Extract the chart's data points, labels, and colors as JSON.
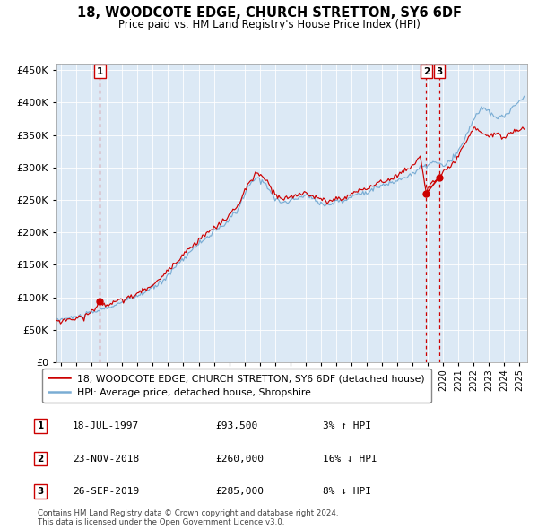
{
  "title": "18, WOODCOTE EDGE, CHURCH STRETTON, SY6 6DF",
  "subtitle": "Price paid vs. HM Land Registry's House Price Index (HPI)",
  "legend_red": "18, WOODCOTE EDGE, CHURCH STRETTON, SY6 6DF (detached house)",
  "legend_blue": "HPI: Average price, detached house, Shropshire",
  "table_entries": [
    {
      "num": 1,
      "date": "18-JUL-1997",
      "price": 93500,
      "pct": "3%",
      "dir": "↑"
    },
    {
      "num": 2,
      "date": "23-NOV-2018",
      "price": 260000,
      "pct": "16%",
      "dir": "↓"
    },
    {
      "num": 3,
      "date": "26-SEP-2019",
      "price": 285000,
      "pct": "8%",
      "dir": "↓"
    }
  ],
  "copyright_text": "Contains HM Land Registry data © Crown copyright and database right 2024.\nThis data is licensed under the Open Government Licence v3.0.",
  "sale_dates_decimal": [
    1997.54,
    2018.9,
    2019.74
  ],
  "sale_prices": [
    93500,
    260000,
    285000
  ],
  "background_color": "#dce9f5",
  "plot_bg_color": "#dce9f5",
  "red_color": "#cc0000",
  "blue_color": "#7aadd4",
  "ylim": [
    0,
    460000
  ],
  "xlim_start": 1994.7,
  "xlim_end": 2025.5,
  "hpi_anchors": [
    [
      1994.7,
      65000
    ],
    [
      1995.5,
      68000
    ],
    [
      1996.5,
      72000
    ],
    [
      1997.5,
      80000
    ],
    [
      1998.5,
      88000
    ],
    [
      1999.5,
      97000
    ],
    [
      2000.5,
      108000
    ],
    [
      2001.5,
      122000
    ],
    [
      2002.5,
      148000
    ],
    [
      2003.5,
      172000
    ],
    [
      2004.5,
      192000
    ],
    [
      2005.5,
      208000
    ],
    [
      2006.5,
      232000
    ],
    [
      2007.2,
      268000
    ],
    [
      2007.8,
      285000
    ],
    [
      2008.5,
      272000
    ],
    [
      2009.0,
      252000
    ],
    [
      2009.5,
      245000
    ],
    [
      2010.5,
      252000
    ],
    [
      2011.0,
      258000
    ],
    [
      2011.5,
      252000
    ],
    [
      2012.0,
      245000
    ],
    [
      2012.5,
      242000
    ],
    [
      2013.0,
      248000
    ],
    [
      2013.5,
      248000
    ],
    [
      2014.0,
      255000
    ],
    [
      2014.5,
      260000
    ],
    [
      2015.0,
      262000
    ],
    [
      2015.5,
      268000
    ],
    [
      2016.0,
      272000
    ],
    [
      2016.5,
      275000
    ],
    [
      2017.0,
      280000
    ],
    [
      2017.5,
      285000
    ],
    [
      2018.0,
      290000
    ],
    [
      2018.5,
      298000
    ],
    [
      2019.0,
      305000
    ],
    [
      2019.5,
      308000
    ],
    [
      2020.0,
      302000
    ],
    [
      2020.5,
      310000
    ],
    [
      2021.0,
      325000
    ],
    [
      2021.5,
      348000
    ],
    [
      2022.0,
      375000
    ],
    [
      2022.5,
      392000
    ],
    [
      2023.0,
      385000
    ],
    [
      2023.5,
      375000
    ],
    [
      2024.0,
      380000
    ],
    [
      2024.5,
      390000
    ],
    [
      2025.0,
      402000
    ],
    [
      2025.3,
      410000
    ]
  ],
  "red_anchors": [
    [
      1994.7,
      63000
    ],
    [
      1995.5,
      66000
    ],
    [
      1996.5,
      70000
    ],
    [
      1997.0,
      78000
    ],
    [
      1997.54,
      93500
    ],
    [
      1998.0,
      88000
    ],
    [
      1998.5,
      92000
    ],
    [
      1999.5,
      100000
    ],
    [
      2000.5,
      112000
    ],
    [
      2001.5,
      128000
    ],
    [
      2002.5,
      155000
    ],
    [
      2003.5,
      178000
    ],
    [
      2004.5,
      198000
    ],
    [
      2005.5,
      215000
    ],
    [
      2006.5,
      238000
    ],
    [
      2007.2,
      272000
    ],
    [
      2007.8,
      292000
    ],
    [
      2008.5,
      278000
    ],
    [
      2009.0,
      258000
    ],
    [
      2009.5,
      250000
    ],
    [
      2010.5,
      258000
    ],
    [
      2011.0,
      262000
    ],
    [
      2011.5,
      256000
    ],
    [
      2012.0,
      250000
    ],
    [
      2012.5,
      248000
    ],
    [
      2013.0,
      252000
    ],
    [
      2013.5,
      252000
    ],
    [
      2014.0,
      260000
    ],
    [
      2014.5,
      265000
    ],
    [
      2015.0,
      268000
    ],
    [
      2015.5,
      272000
    ],
    [
      2016.0,
      278000
    ],
    [
      2016.5,
      282000
    ],
    [
      2017.0,
      288000
    ],
    [
      2017.5,
      295000
    ],
    [
      2018.0,
      302000
    ],
    [
      2018.5,
      318000
    ],
    [
      2018.9,
      260000
    ],
    [
      2019.0,
      270000
    ],
    [
      2019.5,
      280000
    ],
    [
      2019.74,
      285000
    ],
    [
      2020.0,
      292000
    ],
    [
      2020.5,
      300000
    ],
    [
      2021.0,
      318000
    ],
    [
      2021.5,
      338000
    ],
    [
      2022.0,
      360000
    ],
    [
      2022.5,
      355000
    ],
    [
      2023.0,
      348000
    ],
    [
      2023.5,
      352000
    ],
    [
      2024.0,
      345000
    ],
    [
      2024.5,
      355000
    ],
    [
      2025.0,
      358000
    ],
    [
      2025.3,
      362000
    ]
  ]
}
